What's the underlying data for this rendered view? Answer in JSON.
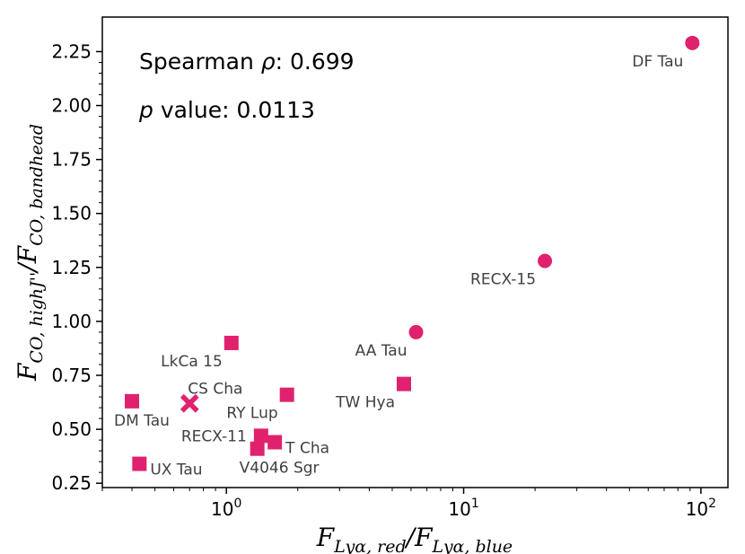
{
  "chart_data": {
    "type": "scatter",
    "xscale": "log",
    "xlim": [
      0.3,
      130
    ],
    "ylim": [
      0.23,
      2.41
    ],
    "color": "#e0226e",
    "xlabel": {
      "base": "F",
      "sub1": "Lyα, red",
      "slash": "/",
      "base2": "F",
      "sub2": "Lyα, blue"
    },
    "ylabel": {
      "base": "F",
      "sub1": "CO, highJ''",
      "slash": "/",
      "base2": "F",
      "sub2": "CO, bandhead"
    },
    "xticks": [
      {
        "value": 1,
        "base": "10",
        "exp": "0"
      },
      {
        "value": 10,
        "base": "10",
        "exp": "1"
      },
      {
        "value": 100,
        "base": "10",
        "exp": "2"
      }
    ],
    "yticks": [
      {
        "value": 0.25,
        "label": "0.25"
      },
      {
        "value": 0.5,
        "label": "0.50"
      },
      {
        "value": 0.75,
        "label": "0.75"
      },
      {
        "value": 1.0,
        "label": "1.00"
      },
      {
        "value": 1.25,
        "label": "1.25"
      },
      {
        "value": 1.5,
        "label": "1.50"
      },
      {
        "value": 1.75,
        "label": "1.75"
      },
      {
        "value": 2.0,
        "label": "2.00"
      },
      {
        "value": 2.25,
        "label": "2.25"
      }
    ],
    "annotations": {
      "spearman_prefix": "Spearman ",
      "spearman_symbol": "ρ",
      "spearman_value": ": 0.699",
      "p_symbol": "p",
      "p_text": " value: 0.0113"
    },
    "points": [
      {
        "name": "DF Tau",
        "x": 92,
        "y": 2.29,
        "marker": "circle",
        "label_pos": "below-left"
      },
      {
        "name": "RECX-15",
        "x": 22,
        "y": 1.28,
        "marker": "circle",
        "label_pos": "below-left"
      },
      {
        "name": "AA Tau",
        "x": 6.3,
        "y": 0.95,
        "marker": "circle",
        "label_pos": "below-left"
      },
      {
        "name": "TW Hya",
        "x": 5.6,
        "y": 0.71,
        "marker": "square",
        "label_pos": "below-left"
      },
      {
        "name": "LkCa 15",
        "x": 1.05,
        "y": 0.9,
        "marker": "square",
        "label_pos": "below-left"
      },
      {
        "name": "CS Cha",
        "x": 0.7,
        "y": 0.62,
        "marker": "x",
        "label_pos": "above-right"
      },
      {
        "name": "DM Tau",
        "x": 0.4,
        "y": 0.63,
        "marker": "square",
        "label_pos": "below-right"
      },
      {
        "name": "RY Lup",
        "x": 1.8,
        "y": 0.66,
        "marker": "square",
        "label_pos": "below-left"
      },
      {
        "name": "RECX-11",
        "x": 1.4,
        "y": 0.47,
        "marker": "square",
        "label_pos": "left"
      },
      {
        "name": "T Cha",
        "x": 1.6,
        "y": 0.44,
        "marker": "square",
        "label_pos": "right"
      },
      {
        "name": "V4046 Sgr",
        "x": 1.35,
        "y": 0.41,
        "marker": "square",
        "label_pos": "below-right"
      },
      {
        "name": "UX Tau",
        "x": 0.43,
        "y": 0.34,
        "marker": "square",
        "label_pos": "right"
      }
    ]
  }
}
